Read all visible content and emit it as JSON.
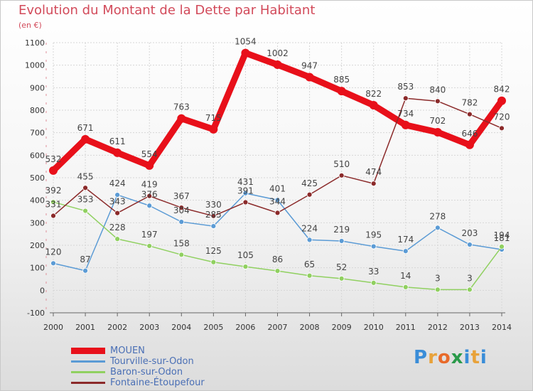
{
  "title": "Evolution du Montant de la Dette par Habitant",
  "unit_label": "(en €)",
  "logo": {
    "text": "Proxiti",
    "letters": [
      "P",
      "r",
      "o",
      "x",
      "i",
      "t",
      "i"
    ],
    "colors": [
      "#3a8dd8",
      "#e8a23a",
      "#e86a2a",
      "#2a9a4a",
      "#3a8dd8",
      "#e8a23a",
      "#3a8dd8"
    ]
  },
  "chart_data": {
    "type": "line",
    "x": [
      "2000",
      "2001",
      "2002",
      "2003",
      "2004",
      "2005",
      "2006",
      "2007",
      "2008",
      "2009",
      "2010",
      "2011",
      "2012",
      "2013",
      "2014"
    ],
    "ylim": [
      -100,
      1100
    ],
    "yticks": [
      "-100",
      "0",
      "100",
      "200",
      "300",
      "400",
      "500",
      "600",
      "700",
      "800",
      "900",
      "1000",
      "1100"
    ],
    "grid": true,
    "legend_position": "bottom-left",
    "series": [
      {
        "name": "MOUEN",
        "color": "#e8101a",
        "width": 9,
        "values": [
          532,
          671,
          611,
          554,
          763,
          715,
          1054,
          1002,
          947,
          885,
          822,
          734,
          702,
          646,
          842
        ],
        "labels": [
          "532",
          "671",
          "611",
          "554",
          "763",
          "715",
          "1054",
          "1002",
          "947",
          "885",
          "822",
          "734",
          "702",
          "646",
          "842"
        ]
      },
      {
        "name": "Tourville-sur-Odon",
        "color": "#5b9bd5",
        "width": 1.5,
        "values": [
          120,
          87,
          424,
          376,
          304,
          285,
          431,
          401,
          224,
          219,
          195,
          174,
          278,
          203,
          181
        ],
        "labels": [
          "120",
          "87",
          "424",
          "376",
          "304",
          "285",
          "431",
          "401",
          "224",
          "219",
          "195",
          "174",
          "278",
          "203",
          "181"
        ]
      },
      {
        "name": "Baron-sur-Odon",
        "color": "#90d060",
        "width": 1.5,
        "values": [
          392,
          353,
          228,
          197,
          158,
          125,
          105,
          86,
          65,
          52,
          33,
          14,
          3,
          3,
          194
        ],
        "labels": [
          "392",
          "353",
          "228",
          "197",
          "158",
          "125",
          "105",
          "86",
          "65",
          "52",
          "33",
          "14",
          "3",
          "3",
          "194"
        ]
      },
      {
        "name": "Fontaine-Étoupefour",
        "color": "#8b2a2a",
        "width": 1.5,
        "values": [
          331,
          455,
          343,
          419,
          367,
          330,
          391,
          344,
          425,
          510,
          474,
          853,
          840,
          782,
          720
        ],
        "labels": [
          "331",
          "455",
          "343",
          "419",
          "367",
          "330",
          "391",
          "344",
          "425",
          "510",
          "474",
          "853",
          "840",
          "782",
          "720"
        ]
      }
    ]
  }
}
